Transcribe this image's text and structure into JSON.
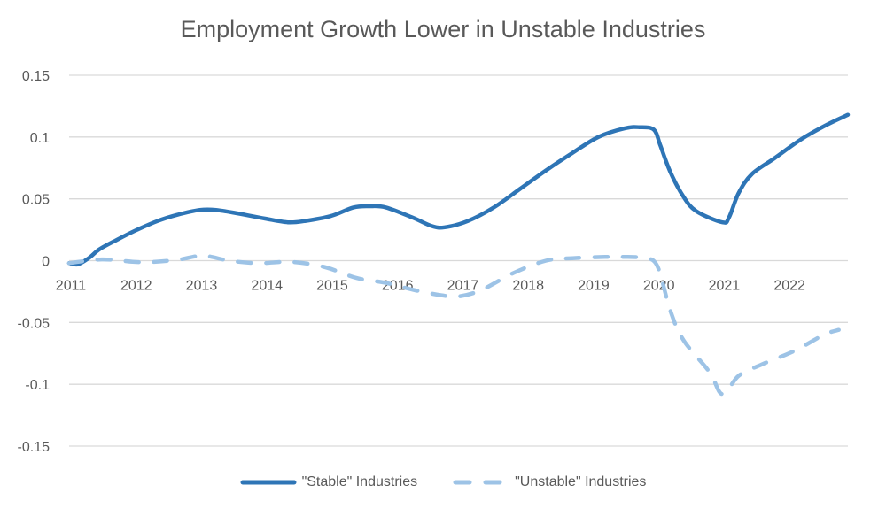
{
  "chart_data": {
    "type": "line",
    "title": "Employment Growth Lower in Unstable Industries",
    "xlabel": "",
    "ylabel": "",
    "ylim": [
      -0.15,
      0.15
    ],
    "xlim": [
      2011.0,
      2022.92
    ],
    "yticks": [
      "0.15",
      "0.1",
      "0.05",
      "0",
      "-0.05",
      "-0.1",
      "-0.15"
    ],
    "ytick_values": [
      0.15,
      0.1,
      0.05,
      0,
      -0.05,
      -0.1,
      -0.15
    ],
    "xticks": [
      "2011",
      "2012",
      "2013",
      "2014",
      "2015",
      "2016",
      "2017",
      "2018",
      "2019",
      "2020",
      "2021",
      "2022"
    ],
    "xtick_values": [
      2011,
      2012,
      2013,
      2014,
      2015,
      2016,
      2017,
      2018,
      2019,
      2020,
      2021,
      2022
    ],
    "grid": true,
    "legend_position": "bottom",
    "series": [
      {
        "name": "\"Stable\" Industries",
        "color": "#2E75B6",
        "style": "solid",
        "x": [
          2011.0,
          2011.13,
          2011.3,
          2011.46,
          2011.7,
          2012.0,
          2012.35,
          2012.65,
          2013.0,
          2013.25,
          2013.6,
          2014.0,
          2014.35,
          2014.6,
          2015.0,
          2015.35,
          2015.6,
          2015.85,
          2016.25,
          2016.55,
          2016.75,
          2017.1,
          2017.5,
          2017.9,
          2018.3,
          2018.7,
          2019.1,
          2019.5,
          2019.72,
          2019.95,
          2020.05,
          2020.2,
          2020.4,
          2020.6,
          2021.0,
          2021.1,
          2021.25,
          2021.45,
          2021.8,
          2022.2,
          2022.6,
          2022.92
        ],
        "values": [
          -0.002,
          -0.003,
          0.002,
          0.009,
          0.016,
          0.024,
          0.032,
          0.037,
          0.041,
          0.041,
          0.038,
          0.034,
          0.031,
          0.032,
          0.036,
          0.043,
          0.044,
          0.043,
          0.035,
          0.028,
          0.027,
          0.032,
          0.043,
          0.058,
          0.073,
          0.087,
          0.1,
          0.107,
          0.108,
          0.106,
          0.093,
          0.072,
          0.052,
          0.04,
          0.031,
          0.035,
          0.055,
          0.07,
          0.083,
          0.098,
          0.11,
          0.118
        ]
      },
      {
        "name": "\"Unstable\" Industries",
        "color": "#9DC3E6",
        "style": "dashed",
        "x": [
          2011.0,
          2011.5,
          2012.0,
          2012.3,
          2012.7,
          2013.05,
          2013.45,
          2013.9,
          2014.4,
          2014.9,
          2015.4,
          2015.85,
          2016.3,
          2016.7,
          2016.95,
          2017.3,
          2017.8,
          2018.3,
          2018.7,
          2019.2,
          2019.55,
          2019.8,
          2020.0,
          2020.2,
          2020.4,
          2020.8,
          2021.0,
          2021.25,
          2021.6,
          2022.1,
          2022.55,
          2022.78
        ],
        "values": [
          -0.002,
          0.001,
          -0.001,
          -0.001,
          0.001,
          0.004,
          0.0,
          -0.002,
          -0.001,
          -0.005,
          -0.014,
          -0.018,
          -0.024,
          -0.028,
          -0.029,
          -0.024,
          -0.01,
          0.0,
          0.002,
          0.003,
          0.003,
          0.002,
          -0.004,
          -0.04,
          -0.064,
          -0.09,
          -0.108,
          -0.093,
          -0.084,
          -0.073,
          -0.06,
          -0.056
        ]
      }
    ]
  }
}
